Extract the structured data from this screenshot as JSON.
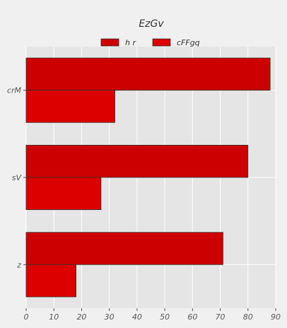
{
  "chart_data": {
    "type": "bar",
    "orientation": "horizontal",
    "title": "EzGv",
    "xlabel": "",
    "ylabel": "",
    "categories": [
      "crM",
      "sV",
      "z"
    ],
    "series": [
      {
        "name": "h r",
        "values": [
          88,
          80,
          71
        ],
        "color": "#cc0000"
      },
      {
        "name": "cFFgq",
        "values": [
          32,
          27,
          18
        ],
        "color": "#dd0000"
      }
    ],
    "xlim": [
      0,
      90
    ],
    "xticks": [
      "0",
      "10",
      "20",
      "30",
      "40",
      "50",
      "60",
      "70",
      "80",
      "90"
    ],
    "grid": true,
    "legend_position": "top-center",
    "background": "#e5e5e5",
    "bar_edge_color": "#333333"
  }
}
